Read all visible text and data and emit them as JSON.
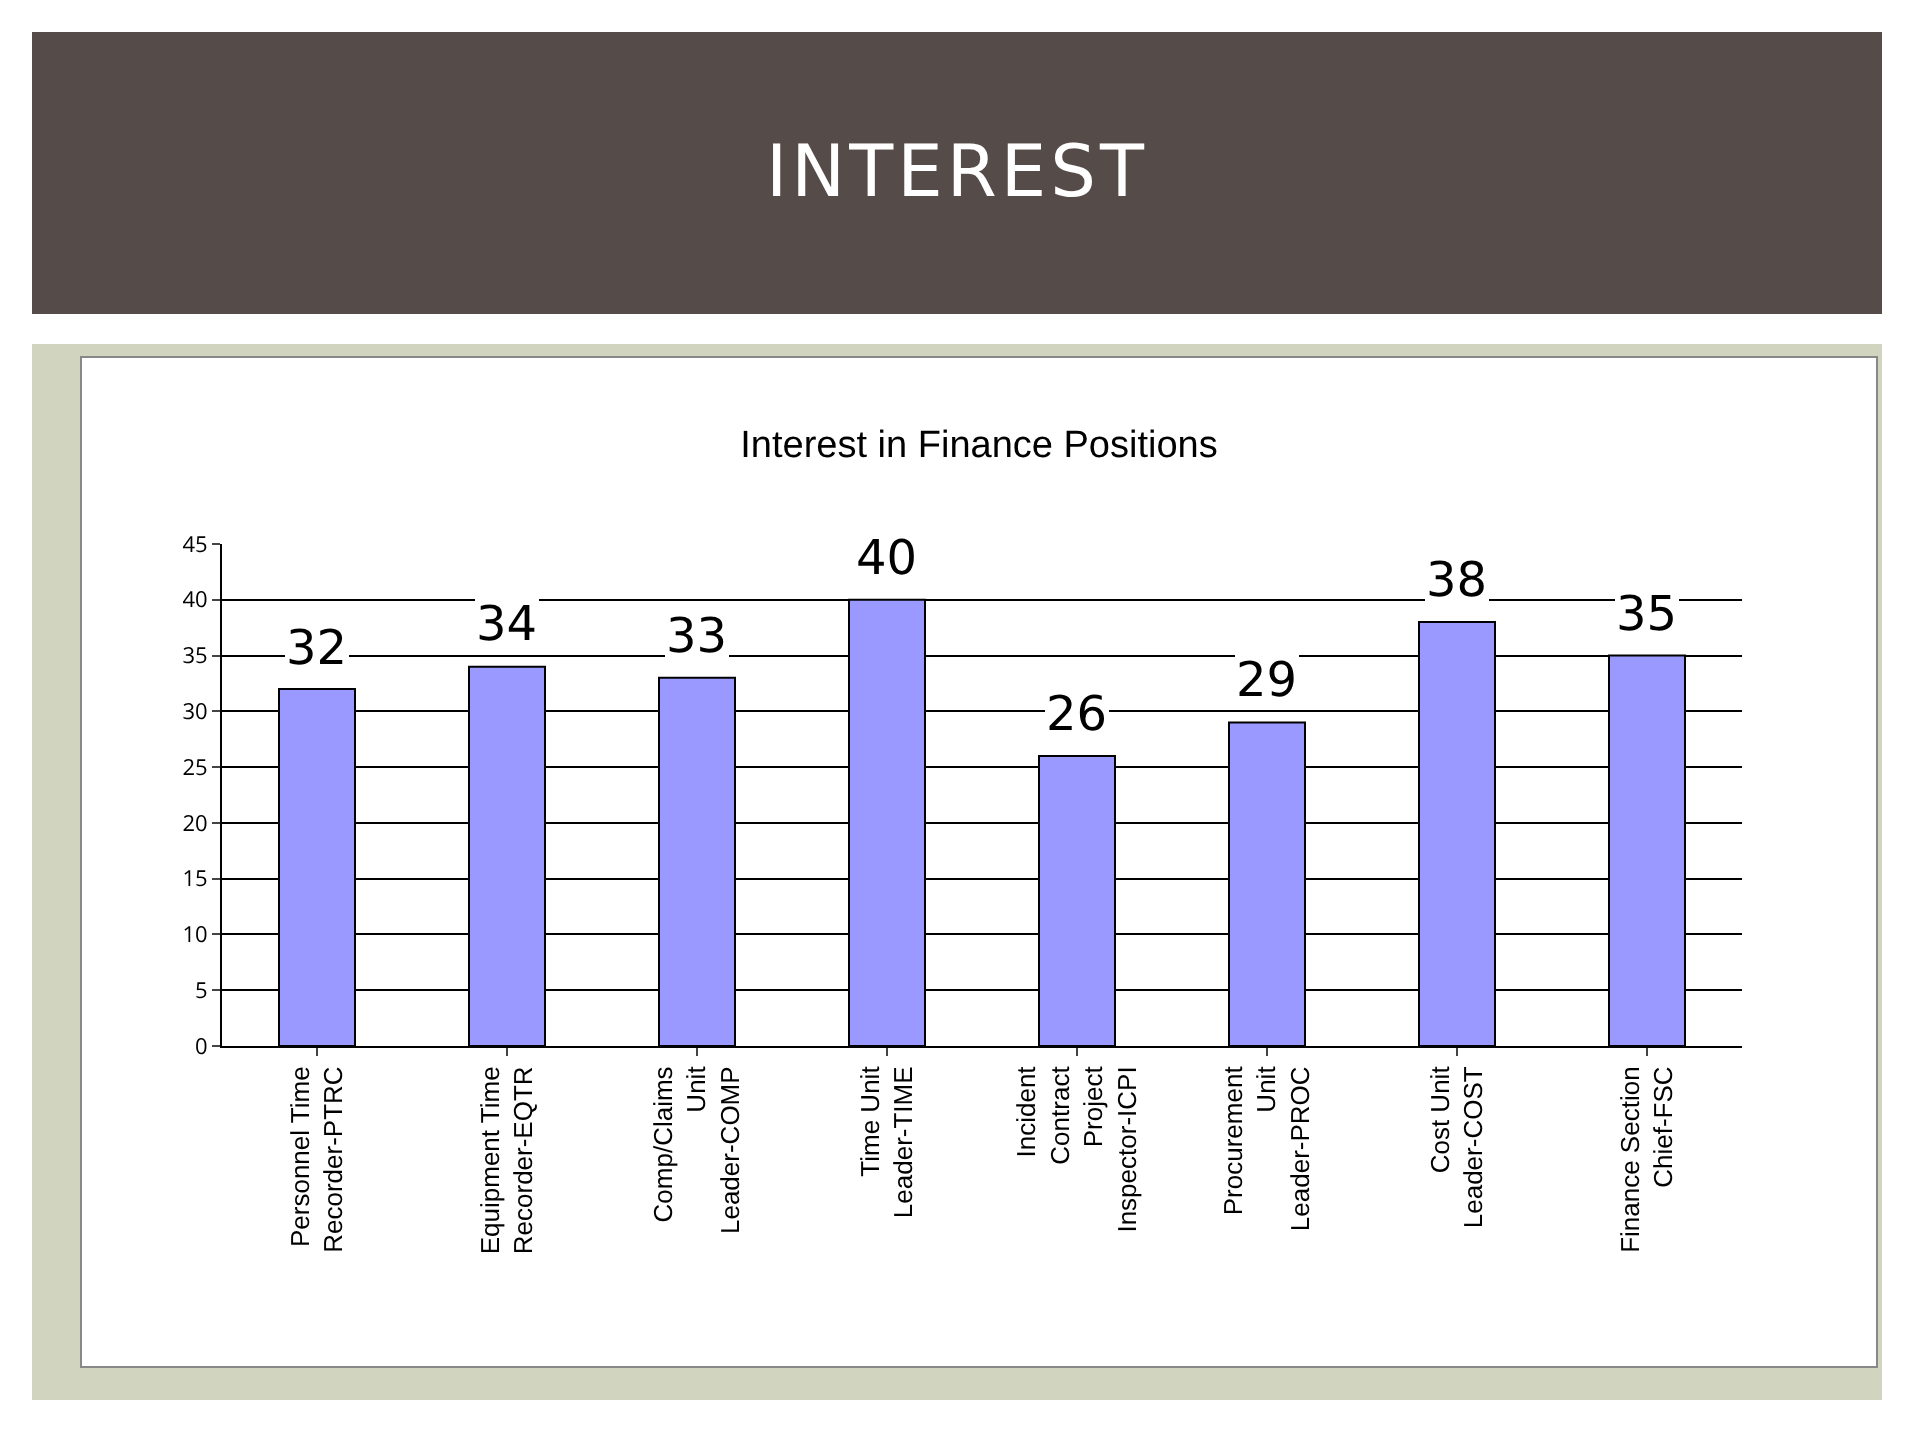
{
  "chart_data": {
    "type": "bar",
    "title": "INTEREST",
    "subtitle": "Interest in Finance Positions",
    "categories": [
      "Personnel Time Recorder-PTRC",
      "Equipment Time Recorder-EQTR",
      "Comp/Claims Unit Leader-COMP",
      "Time Unit Leader-TIME",
      "Incident Contract Project Inspector-ICPI",
      "Procurement Unit Leader-PROC",
      "Cost Unit Leader-COST",
      "Finance Section Chief-FSC"
    ],
    "values": [
      32,
      34,
      33,
      40,
      26,
      29,
      38,
      35
    ],
    "color": "#9999ff",
    "ylim": [
      0,
      45
    ],
    "yticks": [
      0,
      5,
      10,
      15,
      20,
      25,
      30,
      35,
      40,
      45
    ],
    "grid": "y",
    "data_labels": true,
    "legend": false
  }
}
